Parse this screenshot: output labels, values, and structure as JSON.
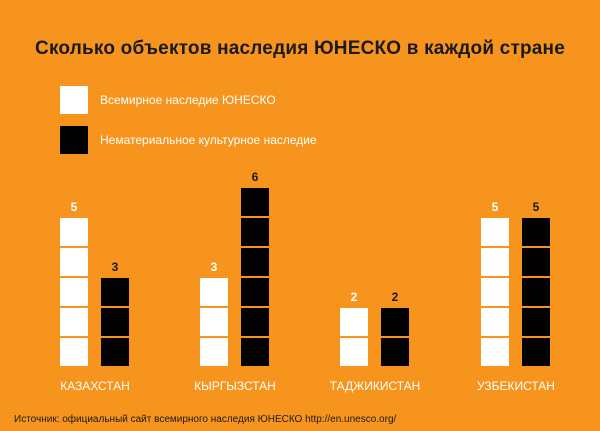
{
  "title": "Сколько объектов наследия ЮНЕСКО в каждой стране",
  "source": "Источник: официальный сайт всемирного наследия ЮНЕСКО http://en.unesco.org/",
  "colors": {
    "background": "#f7941d",
    "world_heritage": "#ffffff",
    "intangible_heritage": "#000000"
  },
  "chart_data": {
    "type": "bar",
    "categories": [
      "КАЗАХСТАН",
      "КЫРГЫЗСТАН",
      "ТАДЖИКИСТАН",
      "УЗБЕКИСТАН"
    ],
    "series": [
      {
        "name": "Всемирное наследие ЮНЕСКО",
        "values": [
          5,
          3,
          2,
          5
        ]
      },
      {
        "name": "Нематериальное культурное наследие",
        "values": [
          3,
          6,
          2,
          5
        ]
      }
    ],
    "title": "Сколько объектов наследия ЮНЕСКО в каждой стране",
    "legend_position": "top-left",
    "grid": false
  }
}
